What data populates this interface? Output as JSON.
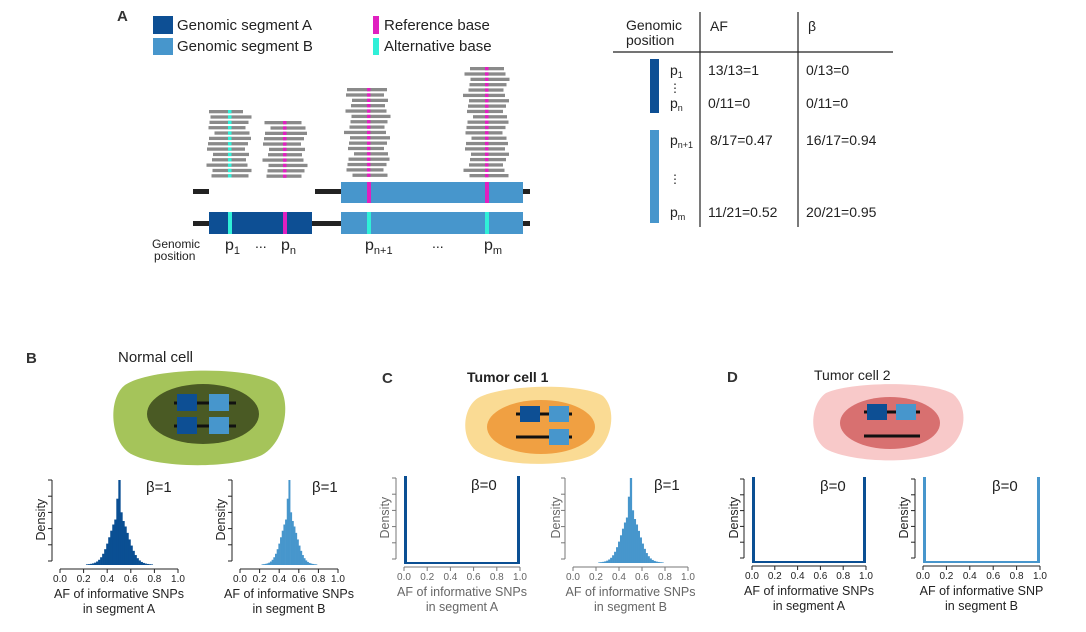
{
  "panelA": {
    "letter": "A",
    "legend": {
      "segA": "Genomic segment A",
      "segB": "Genomic segment B",
      "ref": "Reference base",
      "alt": "Alternative base"
    },
    "genomic_position_label": [
      "Genomic",
      "position"
    ],
    "positions": {
      "p1": {
        "base": "p",
        "sub": "1"
      },
      "pn": {
        "base": "p",
        "sub": "n"
      },
      "pn1": {
        "base": "p",
        "sub": "n+1"
      },
      "pm": {
        "base": "p",
        "sub": "m"
      },
      "ellipsis": "..."
    },
    "table": {
      "header": {
        "pos": [
          "Genomic",
          "position"
        ],
        "af": "AF",
        "beta": "β"
      },
      "rows": [
        {
          "pos_base": "p",
          "pos_sub": "1",
          "af": "13/13=1",
          "beta": "0/13=0"
        },
        {
          "pos_base": "p",
          "pos_sub": "n",
          "af": "0/11=0",
          "beta": "0/11=0"
        },
        {
          "pos_base": "p",
          "pos_sub": "n+1",
          "af": "8/17=0.47",
          "beta": "16/17=0.94"
        },
        {
          "pos_base": "p",
          "pos_sub": "m",
          "af": "11/21=0.52",
          "beta": "20/21=0.95"
        }
      ],
      "vdots": "⋮"
    }
  },
  "cells": {
    "B": {
      "letter": "B",
      "title": "Normal cell"
    },
    "C": {
      "letter": "C",
      "title": "Tumor cell 1"
    },
    "D": {
      "letter": "D",
      "title": "Tumor cell 2"
    }
  },
  "histograms": [
    {
      "beta": "β=1",
      "xlabel": [
        "AF of informative SNPs",
        "in segment A"
      ],
      "ylabel": "Density",
      "color": "#0a4f93"
    },
    {
      "beta": "β=1",
      "xlabel": [
        "AF of informative SNPs",
        "in segment B"
      ],
      "ylabel": "Density",
      "color": "#4796cc"
    },
    {
      "beta": "β=0",
      "xlabel": [
        "AF of informative SNPs",
        "in segment A"
      ],
      "ylabel": "Density",
      "color": "#0a4f93"
    },
    {
      "beta": "β=1",
      "xlabel": [
        "AF of informative SNPs",
        "in segment B"
      ],
      "ylabel": "Density",
      "color": "#4796cc"
    },
    {
      "beta": "β=0",
      "xlabel": [
        "AF of informative SNPs",
        "in segment A"
      ],
      "ylabel": "Density",
      "color": "#0a4f93"
    },
    {
      "beta": "β=0",
      "xlabel": [
        "AF of informative SNP",
        "in segment B"
      ],
      "ylabel": "Density",
      "color": "#4796cc"
    }
  ],
  "axis_ticks": [
    "0.0",
    "0.2",
    "0.4",
    "0.6",
    "0.8",
    "1.0"
  ],
  "colors": {
    "segA": "#0d4f94",
    "segB": "#4796cc",
    "ref": "#e020c0",
    "alt": "#30f0d8",
    "read": "#8a8a8a",
    "normal_outer": "#a5c45a",
    "normal_inner": "#4a5a24",
    "tumor1_outer": "#fadb94",
    "tumor1_inner": "#f0a042",
    "tumor2_outer": "#f8c9c9",
    "tumor2_inner": "#d87070"
  }
}
